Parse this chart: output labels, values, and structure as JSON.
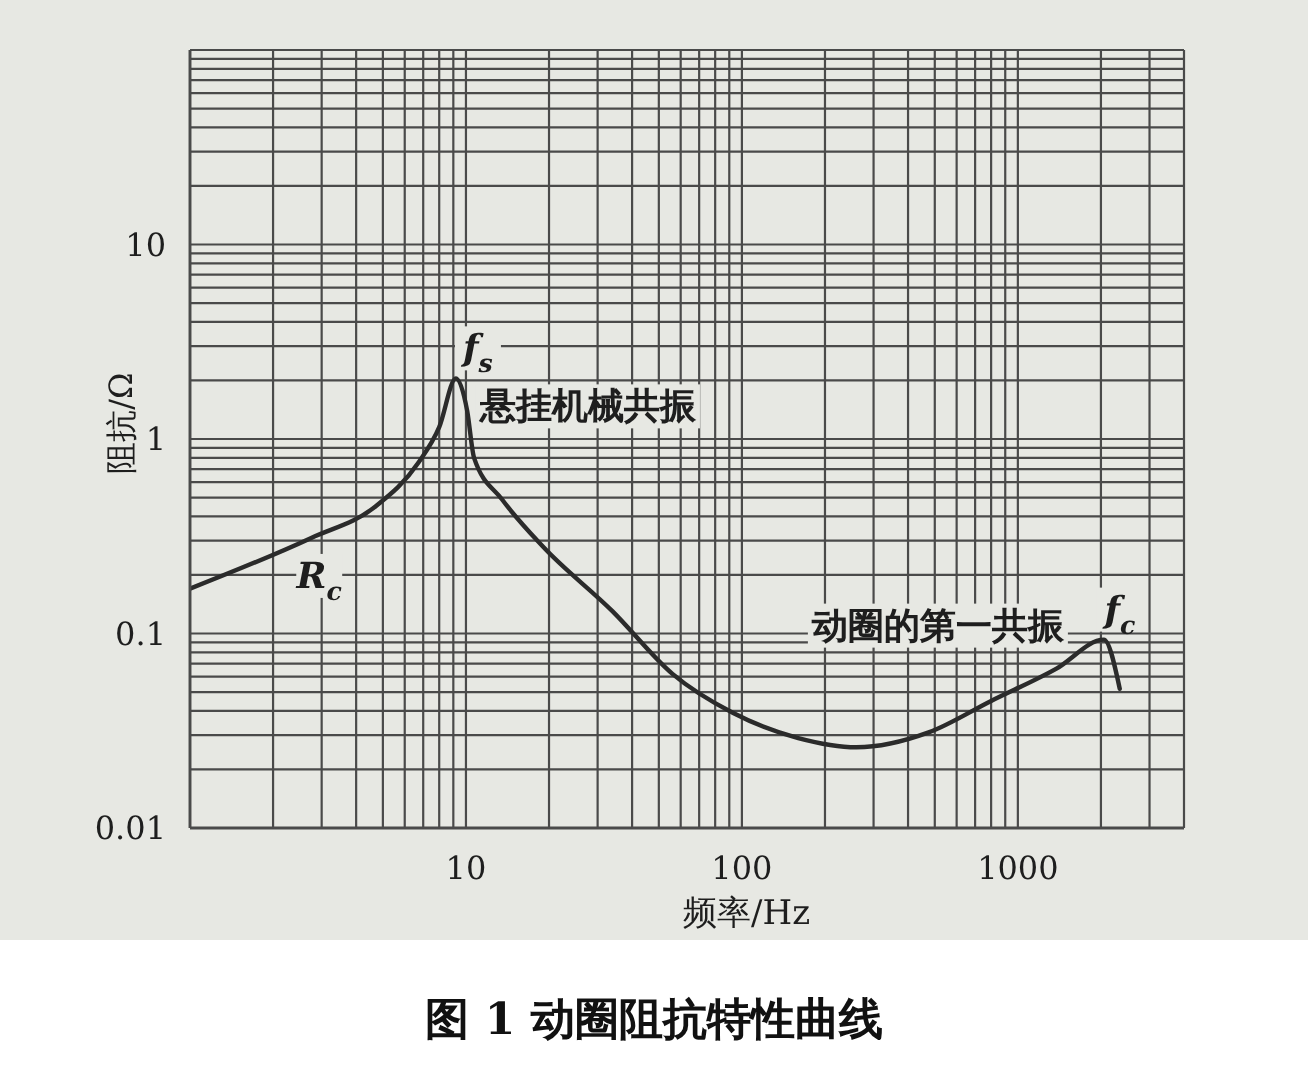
{
  "chart_data": {
    "type": "line",
    "title": "图 1 动圈阻抗特性曲线",
    "xlabel": "频率/Hz",
    "ylabel": "阻抗/Ω",
    "x": [
      1,
      2.75,
      4.7,
      6.7,
      8,
      9.2,
      10.1,
      10.7,
      13.5,
      19,
      34,
      56,
      93,
      160,
      260,
      475,
      800,
      1380,
      2050,
      2340
    ],
    "values": [
      0.17,
      0.31,
      0.45,
      0.75,
      1.15,
      2.05,
      1.4,
      0.8,
      0.49,
      0.28,
      0.13,
      0.062,
      0.039,
      0.029,
      0.026,
      0.031,
      0.045,
      0.066,
      0.093,
      0.052
    ],
    "color": "#2b2b2b",
    "log": "xy",
    "grid": true,
    "xlim": [
      1,
      4000
    ],
    "xticks": [
      {
        "value": 1,
        "label": null
      },
      {
        "value": 2,
        "label": null
      },
      {
        "value": 3,
        "label": null
      },
      {
        "value": 4,
        "label": null
      },
      {
        "value": 5,
        "label": null
      },
      {
        "value": 6,
        "label": null
      },
      {
        "value": 7,
        "label": null
      },
      {
        "value": 8,
        "label": null
      },
      {
        "value": 9,
        "label": null
      },
      10,
      {
        "value": 20,
        "label": null
      },
      {
        "value": 30,
        "label": null
      },
      {
        "value": 40,
        "label": null
      },
      {
        "value": 50,
        "label": null
      },
      {
        "value": 60,
        "label": null
      },
      {
        "value": 70,
        "label": null
      },
      {
        "value": 80,
        "label": null
      },
      {
        "value": 90,
        "label": null
      },
      100,
      {
        "value": 200,
        "label": null
      },
      {
        "value": 300,
        "label": null
      },
      {
        "value": 400,
        "label": null
      },
      {
        "value": 500,
        "label": null
      },
      {
        "value": 600,
        "label": null
      },
      {
        "value": 700,
        "label": null
      },
      {
        "value": 800,
        "label": null
      },
      {
        "value": 900,
        "label": null
      },
      1000,
      {
        "value": 2000,
        "label": null
      },
      {
        "value": 3000,
        "label": null
      },
      {
        "value": 4000,
        "label": null
      }
    ],
    "ylim": [
      0.01,
      100
    ],
    "yticks": [
      0.01,
      {
        "value": 0.02,
        "label": null
      },
      {
        "value": 0.03,
        "label": null
      },
      {
        "value": 0.04,
        "label": null
      },
      {
        "value": 0.05,
        "label": null
      },
      {
        "value": 0.06,
        "label": null
      },
      {
        "value": 0.07,
        "label": null
      },
      {
        "value": 0.08,
        "label": null
      },
      {
        "value": 0.09,
        "label": null
      },
      0.1,
      {
        "value": 0.2,
        "label": null
      },
      {
        "value": 0.3,
        "label": null
      },
      {
        "value": 0.4,
        "label": null
      },
      {
        "value": 0.5,
        "label": null
      },
      {
        "value": 0.6,
        "label": null
      },
      {
        "value": 0.7,
        "label": null
      },
      {
        "value": 0.8,
        "label": null
      },
      {
        "value": 0.9,
        "label": null
      },
      1,
      {
        "value": 2,
        "label": null
      },
      {
        "value": 3,
        "label": null
      },
      {
        "value": 4,
        "label": null
      },
      {
        "value": 5,
        "label": null
      },
      {
        "value": 6,
        "label": null
      },
      {
        "value": 7,
        "label": null
      },
      {
        "value": 8,
        "label": null
      },
      {
        "value": 9,
        "label": null
      },
      10,
      {
        "value": 20,
        "label": null
      },
      {
        "value": 30,
        "label": null
      },
      {
        "value": 40,
        "label": null
      },
      {
        "value": 50,
        "label": null
      },
      {
        "value": 60,
        "label": null
      },
      {
        "value": 70,
        "label": null
      },
      {
        "value": 80,
        "label": null
      },
      {
        "value": 90,
        "label": null
      },
      {
        "value": 100,
        "label": null
      }
    ],
    "annotations": [
      {
        "text": "f$_{s}$",
        "x": 9.2,
        "y": 2.05
      },
      {
        "text": "悬挂机械共振",
        "x": 9.2,
        "y": 2.05
      },
      {
        "text": "R$_{c}$",
        "x": 2.75,
        "y": 0.31
      },
      {
        "text": "动圈的第一共振",
        "x": 2050,
        "y": 0.093
      },
      {
        "text": "f$_{c}$",
        "x": 2050,
        "y": 0.093
      }
    ]
  }
}
